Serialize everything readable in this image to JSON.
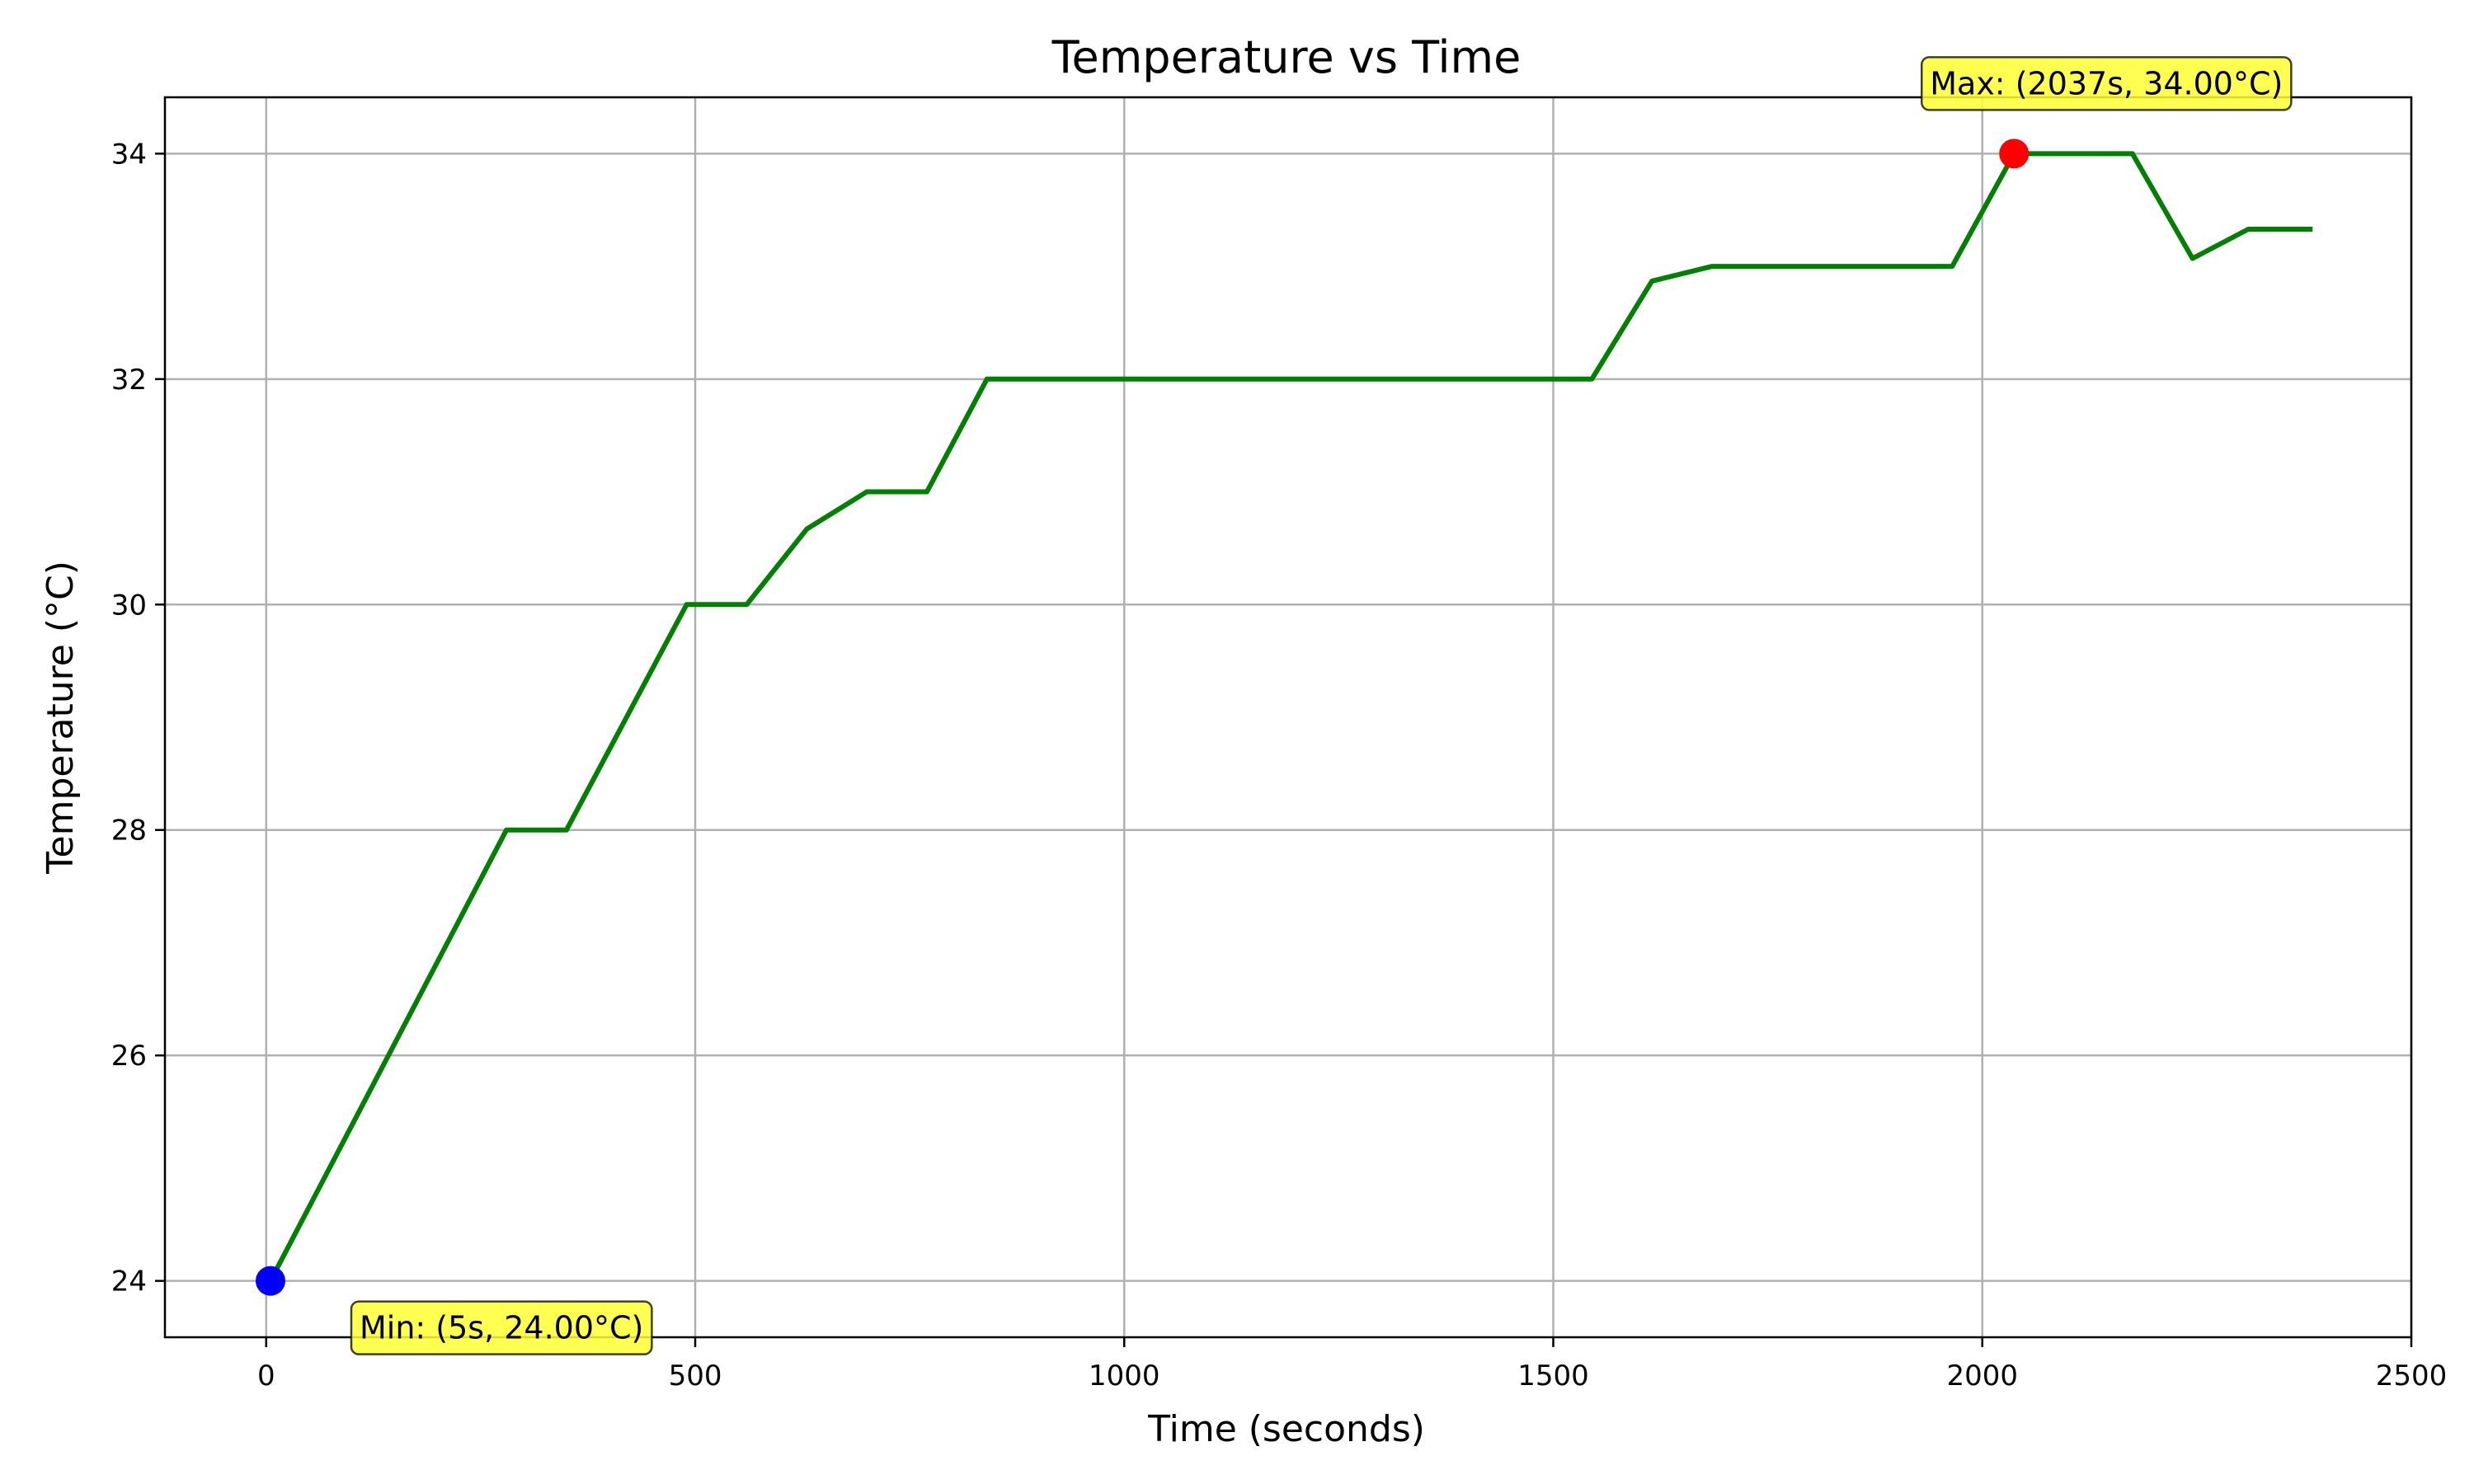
{
  "chart_data": {
    "type": "line",
    "title": "Temperature vs Time",
    "xlabel": "Time (seconds)",
    "ylabel": "Temperature (°C)",
    "xlim": [
      -118,
      2500
    ],
    "ylim": [
      23.5,
      34.5
    ],
    "xticks": [
      0,
      500,
      1000,
      1500,
      2000,
      2500
    ],
    "yticks": [
      24,
      26,
      28,
      30,
      32,
      34
    ],
    "grid": true,
    "series": [
      {
        "color": "#008000",
        "x": [
          5,
          280,
          350,
          490,
          560,
          630,
          700,
          770,
          840,
          1000,
          1200,
          1400,
          1545,
          1615,
          1685,
          1800,
          1965,
          2037,
          2100,
          2175,
          2245,
          2310,
          2385
        ],
        "y": [
          24,
          28,
          28,
          30,
          30,
          30.67,
          31,
          31,
          32,
          32,
          32,
          32,
          32,
          32.87,
          33,
          33,
          33,
          34,
          34,
          34,
          33.07,
          33.33,
          33.33
        ]
      }
    ],
    "annotations": [
      {
        "kind": "min",
        "text": "Min: (5s, 24.00°C)",
        "x": 5,
        "y": 24,
        "color": "#0000ff"
      },
      {
        "kind": "max",
        "text": "Max: (2037s, 34.00°C)",
        "x": 2037,
        "y": 34,
        "color": "#ff0000"
      }
    ],
    "annotation_box_color": "#ffff33"
  }
}
